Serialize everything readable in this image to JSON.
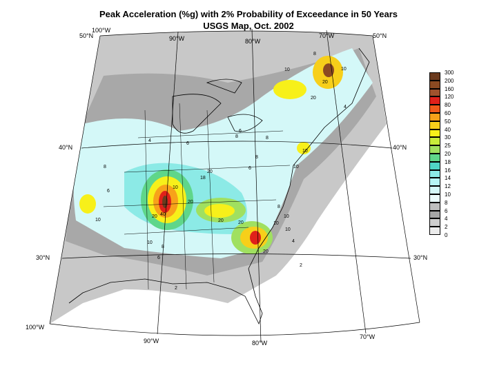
{
  "title": {
    "line1": "Peak Acceleration (%g) with 2% Probability of Exceedance in 50 Years",
    "line2": "USGS Map, Oct. 2002"
  },
  "graticule": {
    "lon_labels": {
      "top_100": "100°W",
      "top_90": "90°W",
      "top_80": "80°W",
      "top_70": "70°W",
      "bot_100": "100°W",
      "bot_90": "90°W",
      "bot_80": "80°W",
      "bot_70": "70°W"
    },
    "lat_labels": {
      "left_50": "50°N",
      "left_40": "40°N",
      "left_30": "30°N",
      "right_50": "50°N",
      "right_40": "40°N",
      "right_30": "30°N"
    }
  },
  "legend": {
    "labels": [
      "300",
      "200",
      "160",
      "120",
      "80",
      "60",
      "50",
      "40",
      "30",
      "25",
      "20",
      "18",
      "16",
      "14",
      "12",
      "10",
      "8",
      "6",
      "4",
      "2",
      "0"
    ],
    "colors": [
      "#6b3a1e",
      "#8b4a22",
      "#a0522d",
      "#e0201a",
      "#f05a1a",
      "#f7a21a",
      "#f7cf1a",
      "#f7f01a",
      "#c8ec3a",
      "#a0e060",
      "#5fd68a",
      "#50d6c6",
      "#8ceae6",
      "#b6f4f4",
      "#d4f8f8",
      "#ecfcfc",
      "#bebebe",
      "#a6a6a6",
      "#cecece",
      "#ececec"
    ]
  },
  "contour_labels": [
    "10",
    "10",
    "8",
    "4",
    "4",
    "6",
    "8",
    "6",
    "6",
    "8",
    "8",
    "10",
    "10",
    "10",
    "20",
    "20",
    "20",
    "20",
    "20",
    "20",
    "20",
    "10",
    "10",
    "10",
    "8",
    "8",
    "6",
    "4",
    "2",
    "2",
    "40",
    "20",
    "10",
    "10",
    "18",
    "6",
    "8"
  ]
}
